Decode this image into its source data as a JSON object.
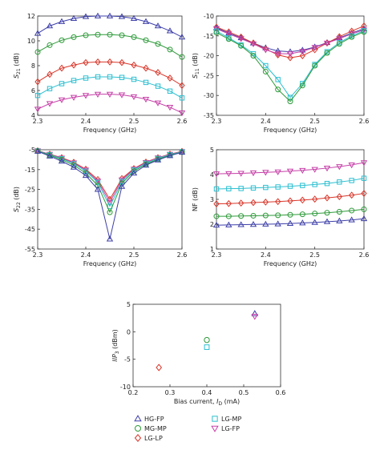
{
  "colors": {
    "HG-FP": "#3d3fa8",
    "MG-MP": "#2e9a3a",
    "LG-LP": "#d9362a",
    "LG-MP": "#2bbfd0",
    "LG-FP": "#c640a8"
  },
  "markers": {
    "HG-FP": "triangle-up",
    "MG-MP": "circle",
    "LG-LP": "diamond",
    "LG-MP": "square",
    "LG-FP": "triangle-down"
  },
  "legend": {
    "entries": [
      "HG-FP",
      "LG-MP",
      "MG-MP",
      "LG-FP",
      "LG-LP"
    ]
  },
  "chart_data": [
    {
      "id": "s21",
      "type": "line",
      "xlabel": "Frequency (GHz)",
      "ylabel_main": "S",
      "ylabel_sub": "21",
      "ylabel_tail": " (dB)",
      "xlim": [
        2.3,
        2.6
      ],
      "ylim": [
        4,
        12
      ],
      "xticks": [
        "2.3",
        "2.4",
        "2.5",
        "2.6"
      ],
      "xtick_values": [
        2.3,
        2.4,
        2.5,
        2.6
      ],
      "yticks": [
        "4",
        "6",
        "8",
        "10",
        "12"
      ],
      "ytick_values": [
        4,
        6,
        8,
        10,
        12
      ],
      "x": [
        2.3,
        2.325,
        2.35,
        2.375,
        2.4,
        2.425,
        2.45,
        2.475,
        2.5,
        2.525,
        2.55,
        2.575,
        2.6
      ],
      "series": [
        {
          "key": "HG-FP",
          "values": [
            10.6,
            11.2,
            11.55,
            11.8,
            11.95,
            12.0,
            12.0,
            11.95,
            11.8,
            11.55,
            11.2,
            10.8,
            10.3
          ]
        },
        {
          "key": "MG-MP",
          "values": [
            9.1,
            9.65,
            10.05,
            10.3,
            10.45,
            10.5,
            10.5,
            10.45,
            10.3,
            10.05,
            9.75,
            9.3,
            8.7
          ]
        },
        {
          "key": "LG-LP",
          "values": [
            6.7,
            7.3,
            7.8,
            8.05,
            8.25,
            8.3,
            8.3,
            8.25,
            8.05,
            7.8,
            7.45,
            7.0,
            6.4
          ]
        },
        {
          "key": "LG-MP",
          "values": [
            5.6,
            6.15,
            6.55,
            6.8,
            7.0,
            7.1,
            7.1,
            7.05,
            6.9,
            6.65,
            6.35,
            5.95,
            5.4
          ]
        },
        {
          "key": "LG-FP",
          "values": [
            4.5,
            4.95,
            5.25,
            5.45,
            5.6,
            5.7,
            5.7,
            5.65,
            5.5,
            5.3,
            5.0,
            4.65,
            4.2
          ]
        }
      ]
    },
    {
      "id": "s11",
      "type": "line",
      "xlabel": "Frequency (GHz)",
      "ylabel_main": "S",
      "ylabel_sub": "11",
      "ylabel_tail": " (dB)",
      "xlim": [
        2.3,
        2.6
      ],
      "ylim": [
        -35,
        -10
      ],
      "xticks": [
        "2.3",
        "2.4",
        "2.5",
        "2.6"
      ],
      "xtick_values": [
        2.3,
        2.4,
        2.5,
        2.6
      ],
      "yticks": [
        "-35",
        "-30",
        "-25",
        "-20",
        "-15",
        "-10"
      ],
      "ytick_values": [
        -35,
        -30,
        -25,
        -20,
        -15,
        -10
      ],
      "x": [
        2.3,
        2.325,
        2.35,
        2.375,
        2.4,
        2.425,
        2.45,
        2.475,
        2.5,
        2.525,
        2.55,
        2.575,
        2.6
      ],
      "series": [
        {
          "key": "HG-FP",
          "values": [
            -13.0,
            -14.3,
            -15.5,
            -16.8,
            -18.0,
            -18.8,
            -19.0,
            -18.6,
            -17.8,
            -16.7,
            -15.5,
            -14.3,
            -13.2
          ]
        },
        {
          "key": "LG-LP",
          "values": [
            -12.8,
            -14.0,
            -15.3,
            -16.8,
            -18.3,
            -19.8,
            -20.5,
            -20.0,
            -18.5,
            -16.8,
            -15.2,
            -13.8,
            -12.5
          ]
        },
        {
          "key": "LG-FP",
          "values": [
            -13.2,
            -14.5,
            -15.7,
            -17.0,
            -18.5,
            -19.5,
            -19.5,
            -18.9,
            -17.9,
            -16.8,
            -15.7,
            -14.5,
            -13.5
          ]
        },
        {
          "key": "LG-MP",
          "values": [
            -13.8,
            -15.5,
            -17.3,
            -19.5,
            -22.5,
            -26.0,
            -30.5,
            -27.0,
            -22.2,
            -19.0,
            -16.7,
            -15.0,
            -13.7
          ]
        },
        {
          "key": "MG-MP",
          "values": [
            -14.2,
            -15.8,
            -17.5,
            -20.0,
            -24.0,
            -28.5,
            -31.5,
            -27.5,
            -22.5,
            -19.3,
            -17.0,
            -15.3,
            -14.0
          ]
        }
      ]
    },
    {
      "id": "s22",
      "type": "line",
      "xlabel": "Frequency (GHz)",
      "ylabel_main": "S",
      "ylabel_sub": "22",
      "ylabel_tail": " (dB)",
      "xlim": [
        2.3,
        2.6
      ],
      "ylim": [
        -55,
        -5
      ],
      "xticks": [
        "2.3",
        "2.4",
        "2.5",
        "2.6"
      ],
      "xtick_values": [
        2.3,
        2.4,
        2.5,
        2.6
      ],
      "yticks": [
        "-55",
        "-45",
        "-35",
        "-25",
        "-15",
        "-5"
      ],
      "ytick_values": [
        -55,
        -45,
        -35,
        -25,
        -15,
        -5
      ],
      "x": [
        2.3,
        2.325,
        2.35,
        2.375,
        2.4,
        2.425,
        2.45,
        2.475,
        2.5,
        2.525,
        2.55,
        2.575,
        2.6
      ],
      "series": [
        {
          "key": "LG-LP",
          "values": [
            -5.5,
            -7.2,
            -9.0,
            -11.3,
            -14.8,
            -20.0,
            -30.0,
            -19.5,
            -14.5,
            -11.2,
            -9.0,
            -7.2,
            -5.8
          ]
        },
        {
          "key": "LG-FP",
          "values": [
            -5.5,
            -7.3,
            -9.2,
            -11.6,
            -15.2,
            -20.8,
            -31.5,
            -20.2,
            -14.8,
            -11.4,
            -9.1,
            -7.3,
            -5.9
          ]
        },
        {
          "key": "LG-MP",
          "values": [
            -5.6,
            -7.5,
            -9.5,
            -12.0,
            -15.8,
            -21.5,
            -33.5,
            -21.0,
            -15.2,
            -11.8,
            -9.4,
            -7.5,
            -6.0
          ]
        },
        {
          "key": "MG-MP",
          "values": [
            -5.7,
            -7.8,
            -10.0,
            -12.8,
            -16.8,
            -23.0,
            -36.5,
            -22.0,
            -15.8,
            -12.3,
            -9.8,
            -7.8,
            -6.2
          ]
        },
        {
          "key": "HG-FP",
          "values": [
            -5.8,
            -8.2,
            -10.8,
            -13.8,
            -18.0,
            -25.0,
            -50.0,
            -23.5,
            -16.8,
            -12.8,
            -10.2,
            -8.0,
            -6.3
          ]
        }
      ]
    },
    {
      "id": "nf",
      "type": "line",
      "xlabel": "Frequency (GHz)",
      "ylabel_main": "NF",
      "ylabel_sub": "",
      "ylabel_tail": " (dB)",
      "xlim": [
        2.3,
        2.6
      ],
      "ylim": [
        1,
        5
      ],
      "xticks": [
        "2.3",
        "2.4",
        "2.5",
        "2.6"
      ],
      "xtick_values": [
        2.3,
        2.4,
        2.5,
        2.6
      ],
      "yticks": [
        "1",
        "2",
        "3",
        "4",
        "5"
      ],
      "ytick_values": [
        1,
        2,
        3,
        4,
        5
      ],
      "x": [
        2.3,
        2.325,
        2.35,
        2.375,
        2.4,
        2.425,
        2.45,
        2.475,
        2.5,
        2.525,
        2.55,
        2.575,
        2.6
      ],
      "series": [
        {
          "key": "HG-FP",
          "values": [
            1.96,
            1.97,
            1.98,
            1.99,
            2.0,
            2.01,
            2.03,
            2.05,
            2.07,
            2.1,
            2.13,
            2.17,
            2.22
          ]
        },
        {
          "key": "MG-MP",
          "values": [
            2.32,
            2.32,
            2.33,
            2.34,
            2.35,
            2.36,
            2.38,
            2.4,
            2.43,
            2.46,
            2.5,
            2.55,
            2.6
          ]
        },
        {
          "key": "LG-LP",
          "values": [
            2.82,
            2.83,
            2.85,
            2.87,
            2.89,
            2.91,
            2.94,
            2.97,
            3.01,
            3.06,
            3.11,
            3.17,
            3.24
          ]
        },
        {
          "key": "LG-MP",
          "values": [
            3.42,
            3.43,
            3.44,
            3.46,
            3.48,
            3.5,
            3.53,
            3.56,
            3.6,
            3.64,
            3.7,
            3.76,
            3.85
          ]
        },
        {
          "key": "LG-FP",
          "values": [
            4.03,
            4.04,
            4.05,
            4.07,
            4.09,
            4.11,
            4.14,
            4.17,
            4.21,
            4.26,
            4.32,
            4.39,
            4.48
          ]
        }
      ]
    },
    {
      "id": "iip3",
      "type": "scatter",
      "xlabel_main": "Bias current, ",
      "xlabel_italic": "I",
      "xlabel_sub": "D",
      "xlabel_tail": " (mA)",
      "ylabel_main": "IIP",
      "ylabel_sub": "3",
      "ylabel_tail": " (dBm)",
      "xlim": [
        0.2,
        0.6
      ],
      "ylim": [
        -10,
        5
      ],
      "xticks": [
        "0.2",
        "0.3",
        "0.4",
        "0.5",
        "0.6"
      ],
      "xtick_values": [
        0.2,
        0.3,
        0.4,
        0.5,
        0.6
      ],
      "yticks": [
        "-10",
        "-5",
        "0",
        "5"
      ],
      "ytick_values": [
        -10,
        -5,
        0,
        5
      ],
      "points": [
        {
          "key": "LG-LP",
          "x": 0.27,
          "y": -6.5
        },
        {
          "key": "LG-MP",
          "x": 0.4,
          "y": -2.8
        },
        {
          "key": "MG-MP",
          "x": 0.4,
          "y": -1.5
        },
        {
          "key": "HG-FP",
          "x": 0.53,
          "y": 3.3
        },
        {
          "key": "LG-FP",
          "x": 0.53,
          "y": 2.8
        }
      ]
    }
  ]
}
